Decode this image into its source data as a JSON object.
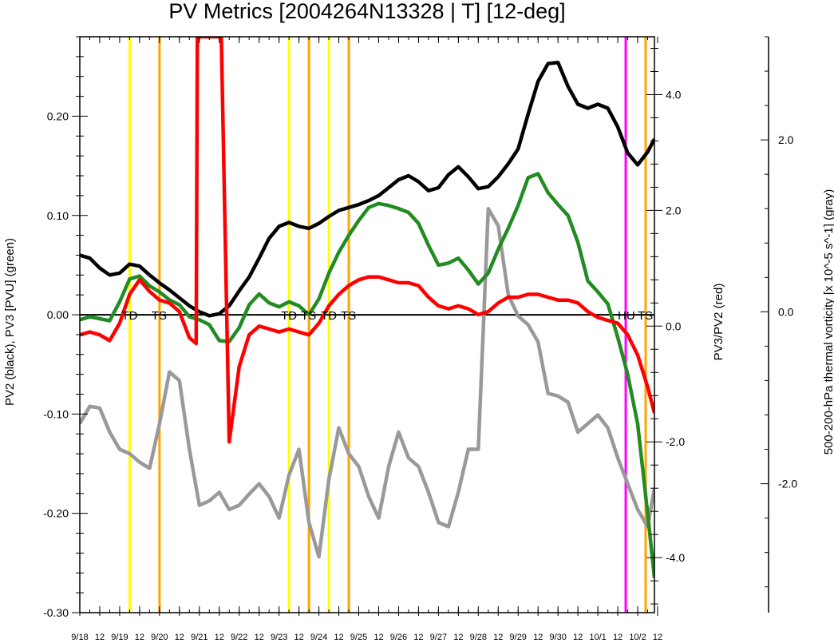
{
  "chart_data": {
    "type": "line",
    "title": "PV Metrics [2004264N13328 | T] [12-deg]",
    "ylabel_left": "PV2 (black), PV3 [PVU] (green)",
    "ylabel_right": "PV3/PV2 (red)",
    "ylabel_far_right": "500-200-hPa thermal vorticity [x 10^-5 s^-1] (gray)",
    "x_range": [
      0,
      14.42
    ],
    "ylim_left": [
      -0.3,
      0.28
    ],
    "ylim_right": [
      -4.95,
      5.0
    ],
    "ylim_far_right": [
      -3.5,
      3.2
    ],
    "x_tick_labels": [
      "9/18",
      "12",
      "9/19",
      "12",
      "9/20",
      "12",
      "9/21",
      "12",
      "9/22",
      "12",
      "9/23",
      "12",
      "9/24",
      "12",
      "9/25",
      "12",
      "9/26",
      "12",
      "9/27",
      "12",
      "9/28",
      "12",
      "9/29",
      "12",
      "9/30",
      "12",
      "10/1",
      "12",
      "10/2",
      "12"
    ],
    "left_ticks": [
      "0.20",
      "0.10",
      "0.00",
      "-0.10",
      "-0.20",
      "-0.30"
    ],
    "left_tick_values": [
      0.2,
      0.1,
      0.0,
      -0.1,
      -0.2,
      -0.3
    ],
    "right_ticks": [
      "4.0",
      "2.0",
      "0.0",
      "-2.0",
      "-4.0"
    ],
    "right_tick_values": [
      4.0,
      2.0,
      0.0,
      -2.0,
      -4.0
    ],
    "far_right_ticks": [
      "2.0",
      "0.0",
      "-2.0"
    ],
    "far_right_tick_values": [
      2.0,
      0.0,
      -2.0
    ],
    "zero_line": 0.0,
    "vertical_lines": [
      {
        "x": 1.25,
        "color": "#ffff00"
      },
      {
        "x": 2.0,
        "color": "#ffa500"
      },
      {
        "x": 5.25,
        "color": "#ffff00"
      },
      {
        "x": 5.75,
        "color": "#ffa500"
      },
      {
        "x": 6.25,
        "color": "#ffff00"
      },
      {
        "x": 6.75,
        "color": "#ffa500"
      },
      {
        "x": 13.7,
        "color": "#ff00ff"
      },
      {
        "x": 14.2,
        "color": "#ffa500"
      }
    ],
    "event_labels": [
      {
        "text": "TD",
        "x": 1.25
      },
      {
        "text": "TS",
        "x": 2.0
      },
      {
        "text": "TD",
        "x": 5.25
      },
      {
        "text": "TS",
        "x": 5.75
      },
      {
        "text": "TD",
        "x": 6.25
      },
      {
        "text": "TS",
        "x": 6.75
      },
      {
        "text": "HU",
        "x": 13.7
      },
      {
        "text": "TS",
        "x": 14.2
      }
    ],
    "series": [
      {
        "color": "#000000",
        "axis": "left",
        "x": [
          0,
          0.25,
          0.5,
          0.75,
          1,
          1.25,
          1.5,
          1.75,
          2,
          2.25,
          2.5,
          2.75,
          3,
          3.25,
          3.5,
          3.75,
          4,
          4.25,
          4.5,
          4.75,
          5,
          5.25,
          5.5,
          5.75,
          6,
          6.25,
          6.5,
          6.75,
          7,
          7.25,
          7.5,
          7.75,
          8,
          8.25,
          8.5,
          8.75,
          9,
          9.25,
          9.5,
          9.75,
          10,
          10.25,
          10.5,
          10.75,
          11,
          11.25,
          11.5,
          11.75,
          12,
          12.25,
          12.5,
          12.75,
          13,
          13.25,
          13.5,
          13.75,
          14,
          14.25,
          14.42
        ],
        "values": [
          0.06,
          0.057,
          0.047,
          0.04,
          0.042,
          0.051,
          0.049,
          0.04,
          0.032,
          0.025,
          0.017,
          0.009,
          0.003,
          -0.001,
          0.001,
          0.009,
          0.024,
          0.038,
          0.057,
          0.077,
          0.089,
          0.093,
          0.089,
          0.087,
          0.092,
          0.099,
          0.105,
          0.108,
          0.111,
          0.115,
          0.12,
          0.128,
          0.136,
          0.14,
          0.134,
          0.125,
          0.128,
          0.141,
          0.149,
          0.139,
          0.127,
          0.129,
          0.139,
          0.152,
          0.167,
          0.202,
          0.235,
          0.253,
          0.254,
          0.23,
          0.212,
          0.208,
          0.212,
          0.208,
          0.189,
          0.163,
          0.151,
          0.164,
          0.177
        ]
      },
      {
        "color": "#228b22",
        "axis": "left",
        "x": [
          0,
          0.25,
          0.5,
          0.75,
          1,
          1.25,
          1.5,
          1.75,
          2,
          2.25,
          2.5,
          2.75,
          3,
          3.25,
          3.5,
          3.75,
          4,
          4.25,
          4.5,
          4.75,
          5,
          5.25,
          5.5,
          5.75,
          6,
          6.25,
          6.5,
          6.75,
          7,
          7.25,
          7.5,
          7.75,
          8,
          8.25,
          8.5,
          8.75,
          9,
          9.25,
          9.5,
          9.75,
          10,
          10.25,
          10.5,
          10.75,
          11,
          11.25,
          11.5,
          11.75,
          12,
          12.25,
          12.5,
          12.75,
          13,
          13.25,
          13.5,
          13.75,
          14,
          14.25,
          14.42
        ],
        "values": [
          -0.005,
          -0.002,
          -0.004,
          -0.006,
          0.013,
          0.036,
          0.039,
          0.029,
          0.023,
          0.015,
          0.01,
          -0.002,
          -0.005,
          -0.01,
          -0.026,
          -0.027,
          -0.013,
          0.01,
          0.021,
          0.012,
          0.008,
          0.013,
          0.009,
          0.0,
          0.016,
          0.042,
          0.063,
          0.08,
          0.095,
          0.108,
          0.112,
          0.11,
          0.107,
          0.103,
          0.092,
          0.07,
          0.05,
          0.052,
          0.057,
          0.045,
          0.031,
          0.042,
          0.066,
          0.087,
          0.11,
          0.138,
          0.142,
          0.123,
          0.111,
          0.1,
          0.073,
          0.034,
          0.023,
          0.011,
          -0.023,
          -0.06,
          -0.11,
          -0.2,
          -0.265
        ]
      },
      {
        "color": "#ff0000",
        "axis": "right",
        "x": [
          0,
          0.25,
          0.5,
          0.75,
          1,
          1.25,
          1.5,
          1.75,
          2,
          2.25,
          2.5,
          2.75,
          2.92,
          2.95,
          3.55,
          3.75,
          4,
          4.25,
          4.5,
          4.75,
          5,
          5.25,
          5.5,
          5.75,
          6,
          6.25,
          6.5,
          6.75,
          7,
          7.25,
          7.5,
          7.75,
          8,
          8.25,
          8.5,
          8.75,
          9,
          9.25,
          9.5,
          9.75,
          10,
          10.25,
          10.5,
          10.75,
          11,
          11.25,
          11.5,
          11.75,
          12,
          12.25,
          12.5,
          12.75,
          13,
          13.25,
          13.5,
          13.75,
          14,
          14.25,
          14.42
        ],
        "values": [
          -0.15,
          -0.1,
          -0.15,
          -0.25,
          0.05,
          0.55,
          0.8,
          0.6,
          0.45,
          0.4,
          0.25,
          -0.2,
          -0.3,
          5.0,
          5.0,
          -2.0,
          -0.7,
          -0.15,
          0.0,
          -0.05,
          -0.1,
          -0.05,
          -0.1,
          -0.15,
          0.05,
          0.35,
          0.55,
          0.7,
          0.8,
          0.85,
          0.85,
          0.8,
          0.75,
          0.75,
          0.7,
          0.5,
          0.35,
          0.3,
          0.35,
          0.3,
          0.2,
          0.25,
          0.4,
          0.5,
          0.5,
          0.55,
          0.55,
          0.5,
          0.45,
          0.45,
          0.4,
          0.25,
          0.15,
          0.1,
          0.05,
          -0.15,
          -0.5,
          -1.05,
          -1.5
        ]
      },
      {
        "color": "#999999",
        "axis": "far_right",
        "x": [
          0,
          0.25,
          0.5,
          0.75,
          1,
          1.25,
          1.5,
          1.75,
          2,
          2.25,
          2.5,
          2.75,
          3,
          3.25,
          3.5,
          3.75,
          4,
          4.25,
          4.5,
          4.75,
          5,
          5.25,
          5.5,
          5.75,
          6,
          6.25,
          6.5,
          6.75,
          7,
          7.25,
          7.5,
          7.75,
          8,
          8.25,
          8.5,
          8.75,
          9,
          9.25,
          9.5,
          9.75,
          10,
          10.25,
          10.5,
          10.75,
          11,
          11.25,
          11.5,
          11.75,
          12,
          12.25,
          12.5,
          12.75,
          13,
          13.25,
          13.5,
          13.75,
          14,
          14.25,
          14.42
        ],
        "values": [
          -1.3,
          -1.1,
          -1.12,
          -1.4,
          -1.6,
          -1.65,
          -1.75,
          -1.82,
          -1.3,
          -0.7,
          -0.8,
          -1.6,
          -2.25,
          -2.2,
          -2.1,
          -2.3,
          -2.25,
          -2.12,
          -2.0,
          -2.15,
          -2.4,
          -1.9,
          -1.6,
          -2.45,
          -2.85,
          -1.95,
          -1.35,
          -1.65,
          -1.8,
          -2.15,
          -2.4,
          -1.8,
          -1.4,
          -1.7,
          -1.8,
          -2.1,
          -2.45,
          -2.5,
          -2.1,
          -1.6,
          -1.6,
          1.2,
          1.0,
          0.2,
          -0.05,
          -0.15,
          -0.35,
          -0.95,
          -0.98,
          -1.05,
          -1.4,
          -1.3,
          -1.2,
          -1.35,
          -1.7,
          -2.0,
          -2.3,
          -2.5,
          -2.05
        ]
      }
    ]
  }
}
